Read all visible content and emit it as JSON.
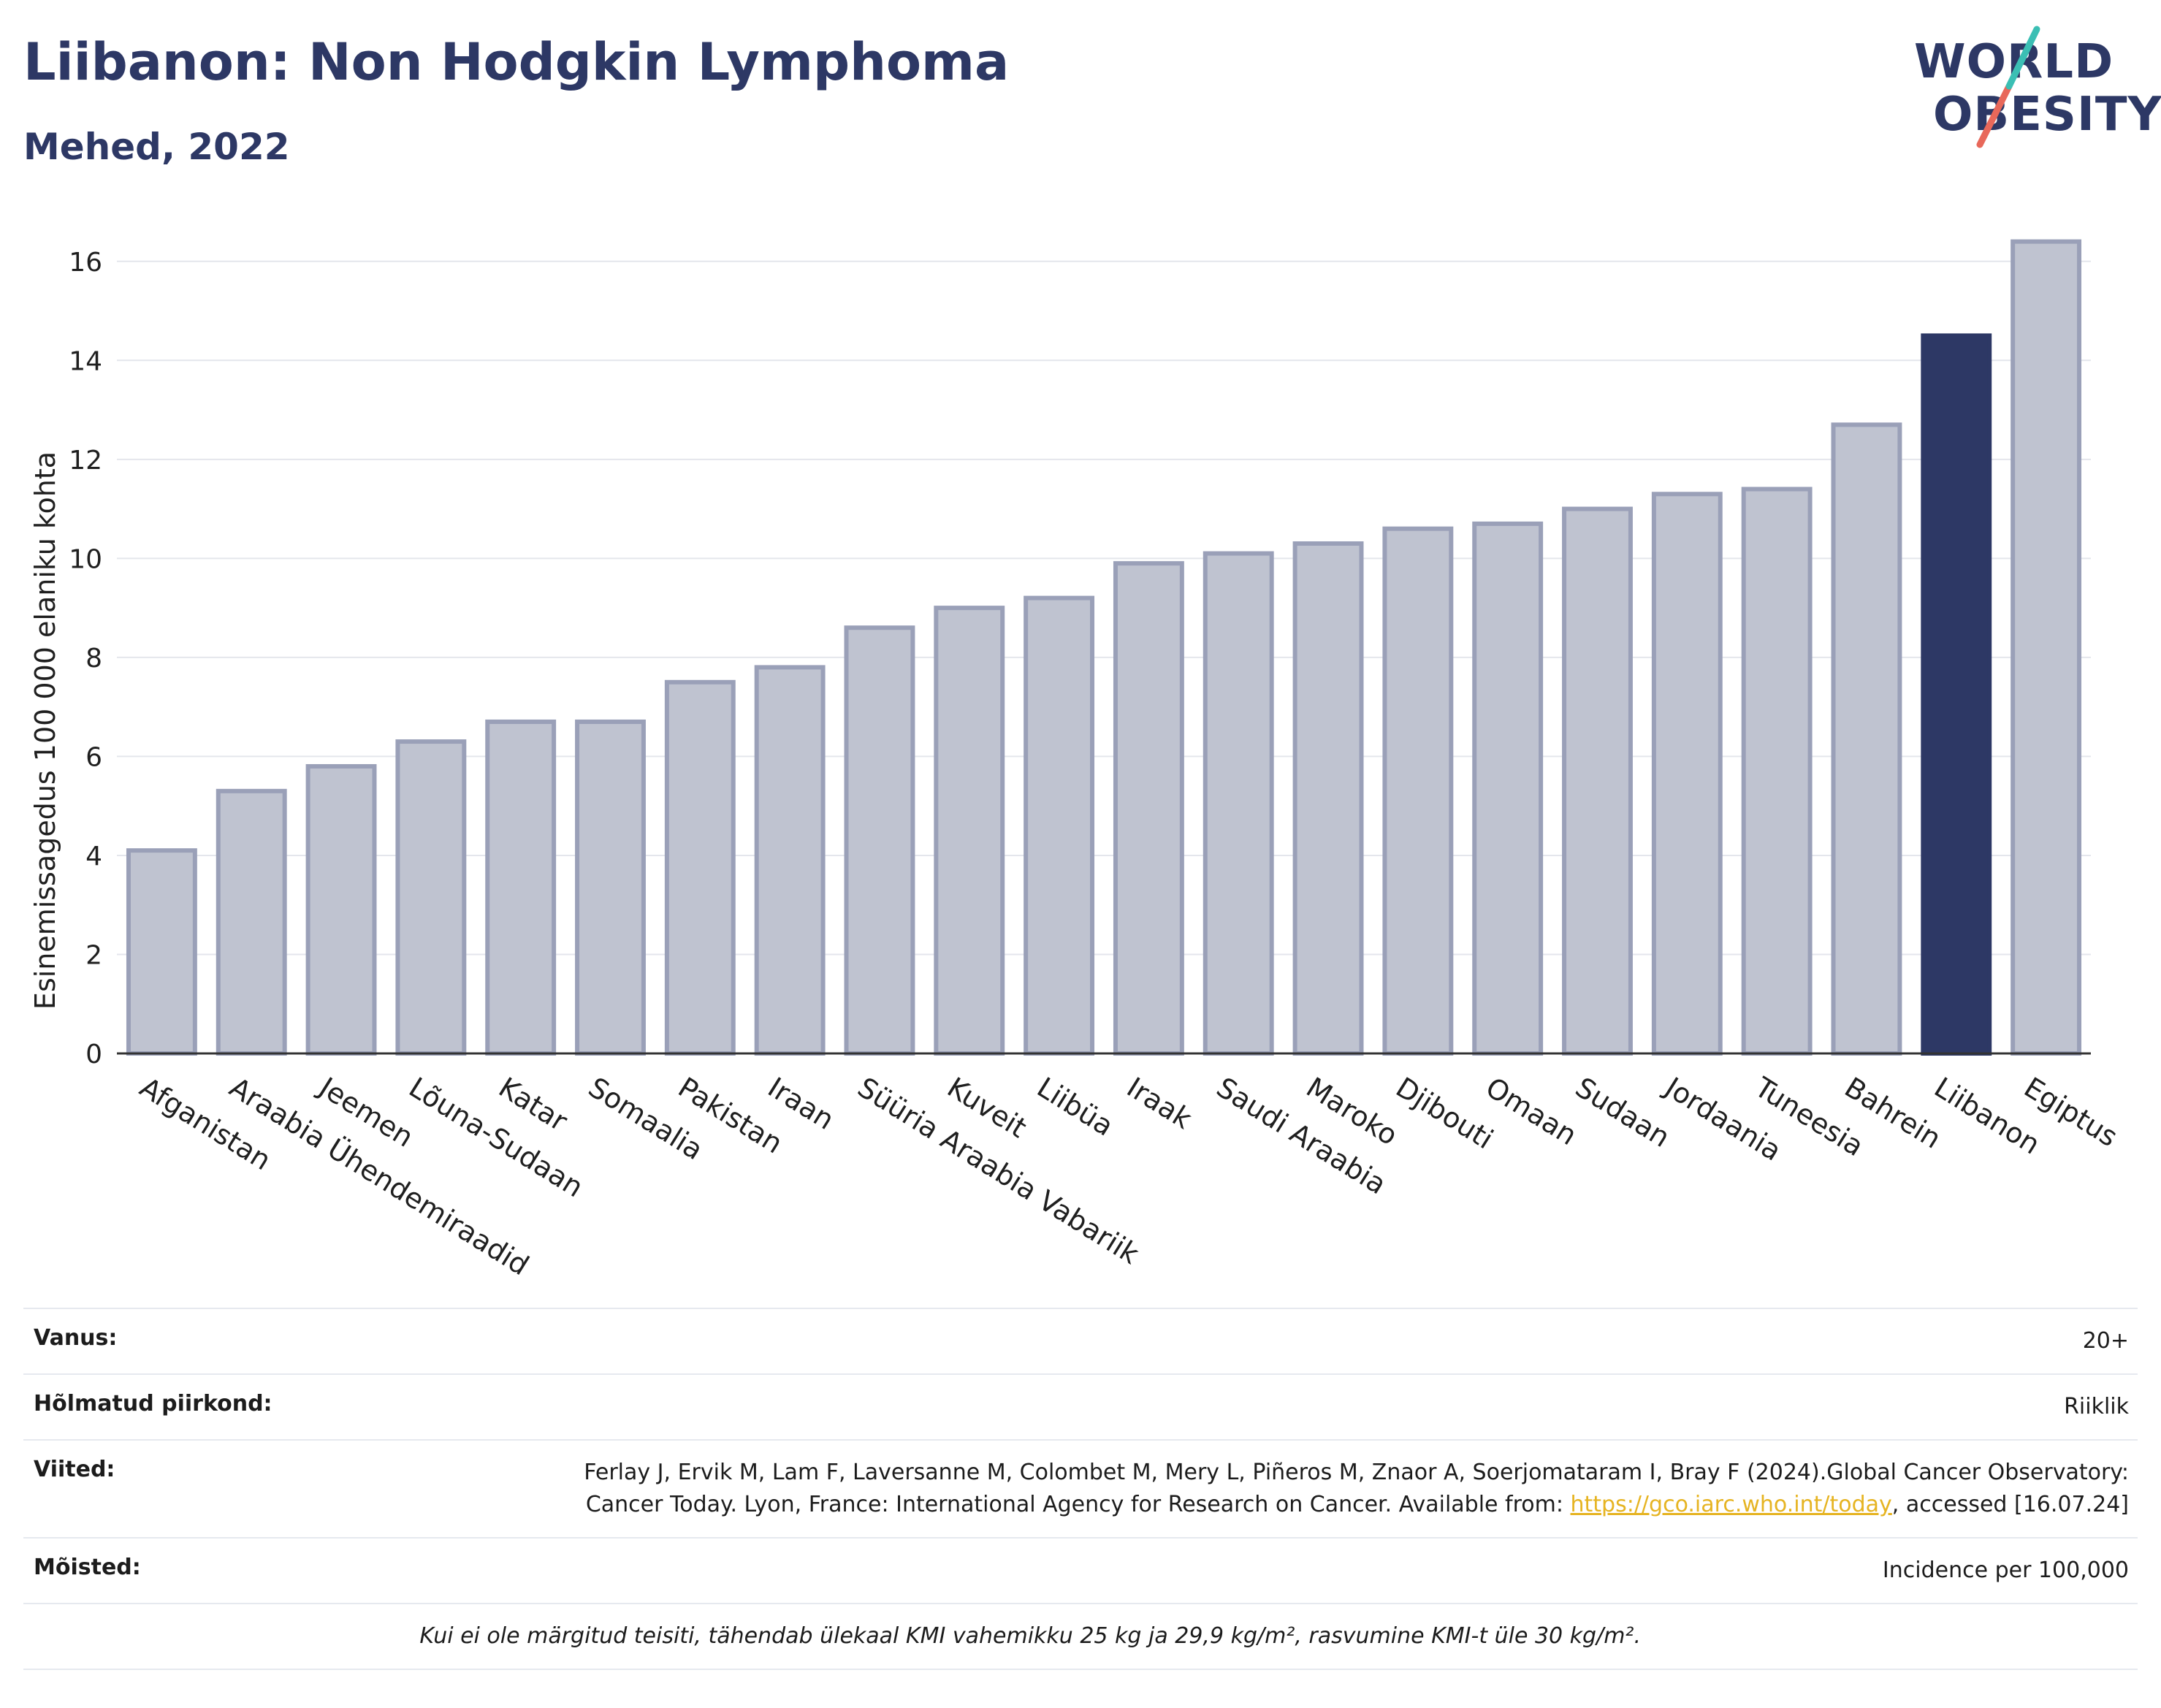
{
  "header": {
    "title": "Liibanon: Non Hodgkin Lymphoma",
    "subtitle": "Mehed, 2022"
  },
  "logo": {
    "line1": "WORLD",
    "line2": "OBESITY"
  },
  "chart_data": {
    "type": "bar",
    "ylabel": "Esinemissagedus 100 000 elaniku kohta",
    "ylim": [
      0,
      17
    ],
    "yticks": [
      0,
      2,
      4,
      6,
      8,
      10,
      12,
      14,
      16
    ],
    "grid": true,
    "highlight": "Liibanon",
    "colors": {
      "default_fill": "#bfc3d0",
      "default_stroke": "#9aa0b8",
      "highlight": "#2d3865"
    },
    "categories": [
      "Afganistan",
      "Araabia Ühendemiraadid",
      "Jeemen",
      "Lõuna-Sudaan",
      "Katar",
      "Somaalia",
      "Pakistan",
      "Iraan",
      "Süüria Araabia Vabariik",
      "Kuveit",
      "Liibüa",
      "Iraak",
      "Saudi Araabia",
      "Maroko",
      "Djibouti",
      "Omaan",
      "Sudaan",
      "Jordaania",
      "Tuneesia",
      "Bahrein",
      "Liibanon",
      "Egiptus"
    ],
    "values": [
      4.1,
      5.3,
      5.8,
      6.3,
      6.7,
      6.7,
      7.5,
      7.8,
      8.6,
      9.0,
      9.2,
      9.9,
      10.1,
      10.3,
      10.6,
      10.7,
      11.0,
      11.3,
      11.4,
      12.7,
      14.5,
      16.4
    ]
  },
  "info": {
    "age_label": "Vanus:",
    "age_value": "20+",
    "coverage_label": "Hõlmatud piirkond:",
    "coverage_value": "Riiklik",
    "refs_label": "Viited:",
    "refs_text": "Ferlay J, Ervik M, Lam F, Laversanne M, Colombet M, Mery L, Piñeros M, Znaor A, Soerjomataram I, Bray F (2024).Global Cancer Observatory: Cancer Today. Lyon, France: International Agency for Research on Cancer. Available from: ",
    "refs_link": "https://gco.iarc.who.int/today",
    "refs_tail": ", accessed [16.07.24]",
    "defs_label": "Mõisted:",
    "defs_value": "Incidence per 100,000",
    "note": "Kui ei ole märgitud teisiti, tähendab ülekaal KMI vahemikku 25 kg ja 29,9 kg/m², rasvumine KMI-t üle 30 kg/m²."
  }
}
